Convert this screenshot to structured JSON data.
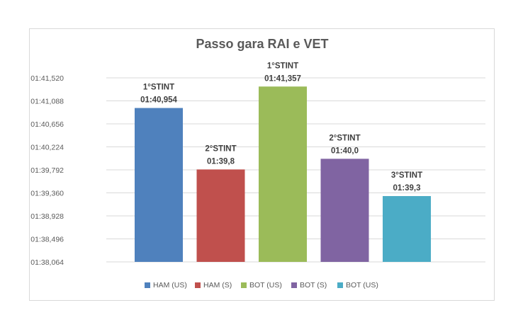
{
  "chart_data": {
    "type": "bar",
    "title": "Passo gara RAI e VET",
    "xlabel": "",
    "ylabel": "",
    "y_ticks": [
      "01:38,064",
      "01:38,496",
      "01:38,928",
      "01:39,360",
      "01:39,792",
      "01:40,224",
      "01:40,656",
      "01:41,088",
      "01:41,520"
    ],
    "ylim": [
      98.064,
      101.52
    ],
    "grid": true,
    "legend_position": "bottom",
    "series": [
      {
        "name": "HAM (US)",
        "value": 100.954,
        "color": "#4F81BD",
        "label_line1": "1°STINT",
        "label_line2": "01:40,954"
      },
      {
        "name": "HAM (S)",
        "value": 99.8,
        "color": "#C0504D",
        "label_line1": "2°STINT",
        "label_line2": "01:39,8"
      },
      {
        "name": "BOT (US)",
        "value": 101.357,
        "color": "#9BBB59",
        "label_line1": "1°STINT",
        "label_line2": "01:41,357"
      },
      {
        "name": "BOT (S)",
        "value": 100.0,
        "color": "#8064A2",
        "label_line1": "2°STINT",
        "label_line2": "01:40,0"
      },
      {
        "name": "BOT (US)",
        "value": 99.3,
        "color": "#4BACC6",
        "label_line1": "3°STINT",
        "label_line2": "01:39,3"
      }
    ]
  }
}
